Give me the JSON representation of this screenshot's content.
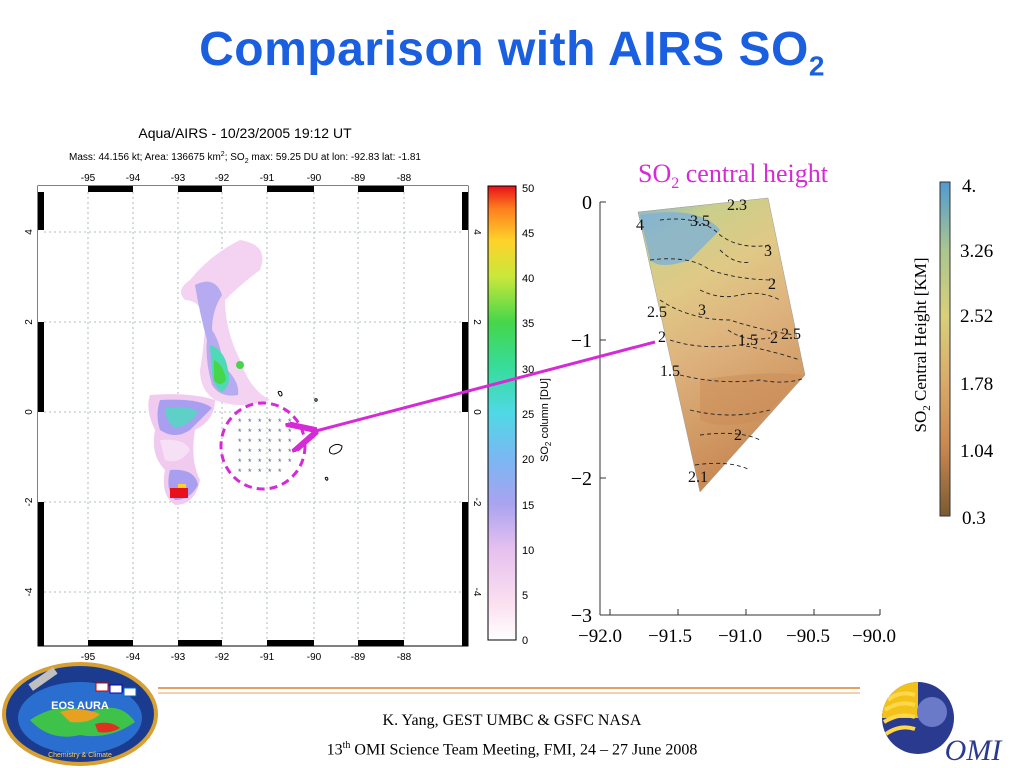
{
  "title": {
    "main": "Comparison with AIRS SO",
    "sub": "2"
  },
  "airs_map": {
    "title": "Aqua/AIRS - 10/23/2005 19:12 UT",
    "info_prefix": "Mass: 44.156 kt; Area: 136675 km",
    "info_km_sup": "2",
    "info_mid": "; SO",
    "info_so_sub": "2",
    "info_suffix": " max: 59.25 DU at lon: -92.83 lat: -1.81",
    "x_ticks": [
      "-95",
      "-94",
      "-93",
      "-92",
      "-91",
      "-90",
      "-89",
      "-88"
    ],
    "y_ticks_left": [
      "4",
      "2",
      "0",
      "-2",
      "-4"
    ],
    "y_ticks_right": [
      "4",
      "2",
      "0",
      "-2",
      "-4"
    ],
    "colorbar_ticks": [
      "50",
      "45",
      "40",
      "35",
      "30",
      "25",
      "20",
      "15",
      "10",
      "5",
      "0"
    ],
    "colorbar_label_prefix": "SO",
    "colorbar_label_sub": "2",
    "colorbar_label_suffix": " column [DU]"
  },
  "height_panel": {
    "label_prefix": "SO",
    "label_sub": "2",
    "label_suffix": " central height",
    "y_ticks": [
      "0",
      "−1",
      "−2",
      "−3"
    ],
    "x_ticks": [
      "−92.0",
      "−91.5",
      "−91.0",
      "−90.5",
      "−90.0"
    ],
    "contour_labels": [
      "2.3",
      "4",
      "3.5",
      "3",
      "2",
      "2.5",
      "3",
      "2",
      "1.5",
      "2",
      "2.5",
      "1.5",
      "2",
      "2.1"
    ],
    "colorbar_ticks": [
      "4.",
      "3.26",
      "2.52",
      "1.78",
      "1.04",
      "0.3"
    ],
    "colorbar_label_prefix": "SO",
    "colorbar_label_sub": "2",
    "colorbar_label_suffix": " Central Height [KM]"
  },
  "footer": {
    "line1": "K. Yang, GEST UMBC  & GSFC NASA",
    "line2_num": "13",
    "line2_sup": "th",
    "line2_rest": " OMI Science Team Meeting, FMI, 24 – 27 June 2008"
  },
  "logos": {
    "left_text_top": "EOS AURA",
    "left_text_bottom": "Chemistry & Climate",
    "right_text": "OMI"
  },
  "colors": {
    "title": "#1a5fe0",
    "annotation": "#d62ad6",
    "rule": "#e8a060"
  }
}
